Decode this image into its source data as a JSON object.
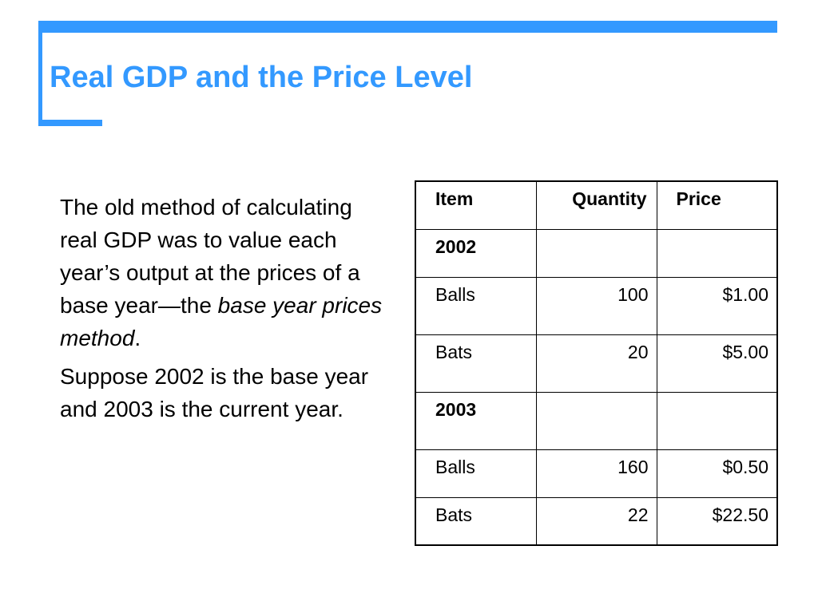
{
  "slide": {
    "title": "Real GDP and the Price Level",
    "colors": {
      "accent": "#3399ff",
      "text": "#000000"
    },
    "body": {
      "p1_before": "The old method of calculating real GDP was to value each year’s output at the prices of a base year—the ",
      "p1_italic": "base year prices method",
      "p1_after": ".",
      "p2": "Suppose 2002 is the base year and 2003 is the current year."
    },
    "table": {
      "headers": [
        "Item",
        "Quantity",
        "Price"
      ],
      "rows": [
        {
          "item": "2002",
          "quantity": "",
          "price": ""
        },
        {
          "item": "Balls",
          "quantity": "100",
          "price": "$1.00"
        },
        {
          "item": "Bats",
          "quantity": "20",
          "price": "$5.00"
        },
        {
          "item": "2003",
          "quantity": "",
          "price": ""
        },
        {
          "item": "Balls",
          "quantity": "160",
          "price": "$0.50"
        },
        {
          "item": "Bats",
          "quantity": "22",
          "price": "$22.50"
        }
      ]
    }
  }
}
